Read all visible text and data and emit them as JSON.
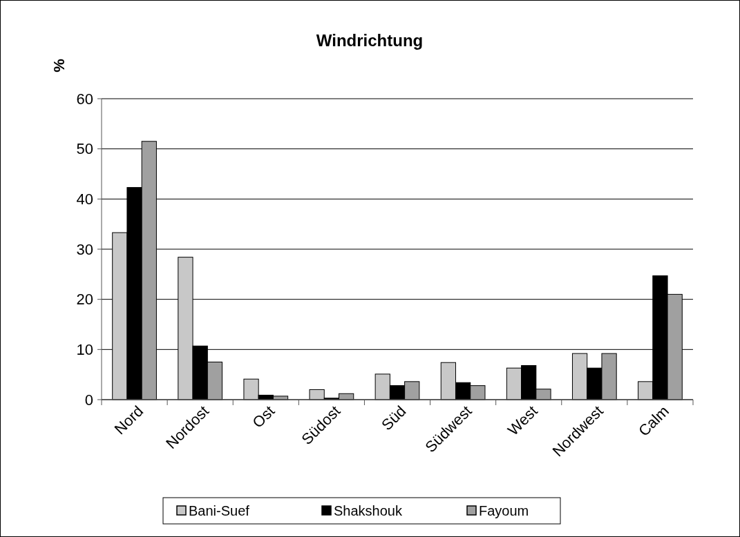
{
  "chart_data": {
    "type": "bar",
    "title": "Windrichtung",
    "ylabel": "%",
    "categories": [
      "Nord",
      "Nordost",
      "Ost",
      "Südost",
      "Süd",
      "Südwest",
      "West",
      "Nordwest",
      "Calm"
    ],
    "series": [
      {
        "name": "Bani-Suef",
        "color": "#c8c8c8",
        "values": [
          33.3,
          28.4,
          4.1,
          2.0,
          5.1,
          7.4,
          6.3,
          9.2,
          3.6
        ]
      },
      {
        "name": "Shakshouk",
        "color": "#000000",
        "values": [
          42.3,
          10.7,
          0.9,
          0.3,
          2.8,
          3.4,
          6.8,
          6.3,
          24.7
        ]
      },
      {
        "name": "Fayoum",
        "color": "#a0a0a0",
        "values": [
          51.5,
          7.5,
          0.7,
          1.2,
          3.6,
          2.8,
          2.1,
          9.2,
          21.0
        ]
      }
    ],
    "ylim": [
      0,
      60
    ],
    "yticks": [
      0,
      10,
      20,
      30,
      40,
      50,
      60
    ],
    "grid": "y",
    "legend": "bottom"
  }
}
